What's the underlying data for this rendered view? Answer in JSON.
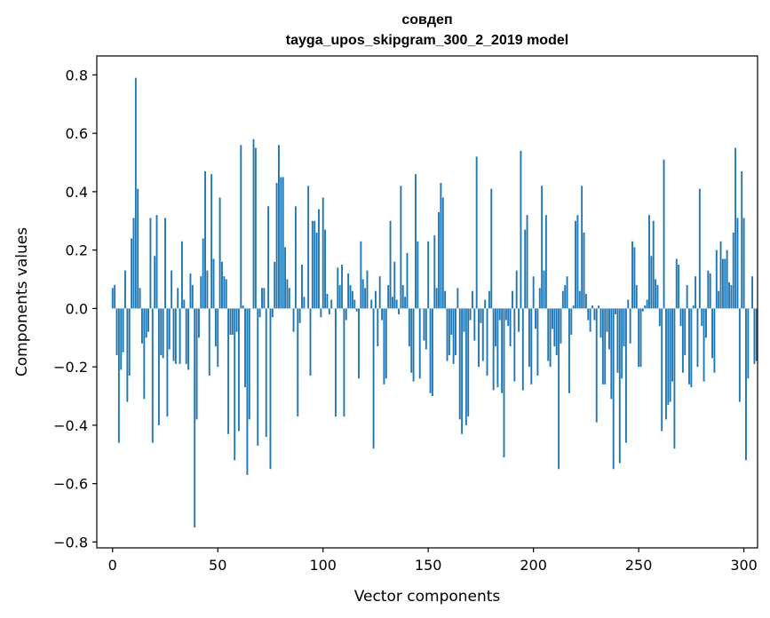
{
  "chart_data": {
    "type": "bar",
    "title_line1": "совдеп",
    "title_line2": "tayga_upos_skipgram_300_2_2019 model",
    "xlabel": "Vector components",
    "ylabel": "Components values",
    "xlim": [
      -7.5,
      306.5
    ],
    "ylim": [
      -0.82,
      0.865
    ],
    "xticks": [
      0,
      50,
      100,
      150,
      200,
      250,
      300
    ],
    "xtick_labels": [
      "0",
      "50",
      "100",
      "150",
      "200",
      "250",
      "300"
    ],
    "yticks": [
      -0.8,
      -0.6,
      -0.4,
      -0.2,
      0.0,
      0.2,
      0.4,
      0.6,
      0.8
    ],
    "ytick_labels": [
      "−0.8",
      "−0.6",
      "−0.4",
      "−0.2",
      "0.0",
      "0.2",
      "0.4",
      "0.6",
      "0.8"
    ],
    "bar_color": "#1f77b4",
    "values": [
      0.07,
      0.08,
      -0.16,
      -0.46,
      -0.21,
      -0.15,
      0.13,
      -0.32,
      -0.23,
      0.24,
      0.31,
      0.79,
      0.41,
      0.07,
      -0.12,
      -0.31,
      -0.1,
      -0.08,
      0.31,
      -0.46,
      0.18,
      0.32,
      -0.4,
      -0.16,
      -0.17,
      0.31,
      -0.37,
      -0.14,
      0.13,
      -0.18,
      -0.19,
      0.07,
      -0.19,
      0.23,
      0.03,
      -0.19,
      -0.21,
      0.12,
      0.08,
      -0.75,
      -0.38,
      -0.1,
      0.11,
      0.24,
      0.47,
      0.13,
      -0.23,
      0.46,
      0.17,
      -0.13,
      -0.2,
      0.38,
      0.16,
      0.11,
      0.1,
      -0.43,
      -0.09,
      -0.09,
      -0.52,
      -0.08,
      -0.42,
      0.56,
      0.01,
      -0.27,
      -0.57,
      -0.38,
      0.0,
      0.58,
      0.55,
      -0.47,
      -0.03,
      0.07,
      0.07,
      -0.44,
      0.35,
      -0.55,
      -0.03,
      0.16,
      0.43,
      0.56,
      0.45,
      0.45,
      0.21,
      0.1,
      0.07,
      0.0,
      -0.08,
      0.35,
      -0.37,
      -0.05,
      0.15,
      0.04,
      0.0,
      0.42,
      -0.23,
      0.3,
      0.3,
      0.26,
      0.34,
      -0.03,
      0.38,
      0.27,
      0.05,
      -0.02,
      0.03,
      0.0,
      -0.37,
      0.14,
      0.08,
      0.15,
      -0.37,
      -0.04,
      0.12,
      0.08,
      0.06,
      0.03,
      -0.01,
      -0.24,
      0.23,
      0.1,
      0.07,
      0.13,
      0.0,
      0.03,
      -0.48,
      0.06,
      -0.13,
      0.11,
      -0.04,
      -0.26,
      -0.24,
      0.08,
      0.3,
      0.04,
      0.16,
      0.03,
      -0.02,
      0.42,
      0.08,
      0.04,
      0.19,
      -0.13,
      -0.22,
      -0.25,
      0.46,
      0.23,
      -0.24,
      0.0,
      -0.11,
      -0.14,
      0.23,
      -0.29,
      -0.3,
      0.25,
      0.07,
      0.33,
      0.43,
      0.38,
      0.06,
      -0.18,
      -0.16,
      -0.09,
      -0.19,
      -0.16,
      0.07,
      -0.38,
      -0.43,
      -0.08,
      -0.4,
      -0.37,
      -0.04,
      0.06,
      -0.11,
      0.52,
      -0.2,
      -0.05,
      -0.18,
      0.03,
      -0.23,
      0.06,
      0.41,
      -0.28,
      -0.13,
      -0.27,
      -0.04,
      -0.29,
      -0.51,
      -0.04,
      -0.06,
      -0.13,
      0.06,
      -0.25,
      0.13,
      -0.08,
      0.54,
      -0.28,
      0.27,
      0.32,
      -0.2,
      -0.26,
      0.11,
      -0.07,
      -0.23,
      0.07,
      0.42,
      0.13,
      0.32,
      -0.18,
      -0.2,
      -0.07,
      -0.13,
      -0.16,
      -0.55,
      -0.12,
      0.06,
      0.08,
      0.11,
      -0.29,
      -0.09,
      0.01,
      0.3,
      0.32,
      0.06,
      0.42,
      0.26,
      0.05,
      -0.04,
      -0.08,
      0.01,
      -0.04,
      -0.39,
      0.01,
      -0.1,
      -0.26,
      -0.26,
      -0.08,
      -0.14,
      -0.31,
      -0.55,
      -0.02,
      -0.22,
      -0.53,
      -0.24,
      -0.13,
      -0.46,
      0.03,
      -0.12,
      0.23,
      0.21,
      0.08,
      -0.2,
      -0.2,
      -0.01,
      0.01,
      0.03,
      0.32,
      0.18,
      0.3,
      0.1,
      0.08,
      -0.06,
      -0.42,
      0.51,
      -0.38,
      -0.33,
      -0.32,
      -0.25,
      -0.48,
      0.17,
      0.15,
      -0.06,
      -0.22,
      -0.16,
      0.08,
      -0.26,
      -0.27,
      0.01,
      0.11,
      -0.2,
      0.41,
      -0.06,
      -0.25,
      -0.1,
      0.13,
      0.12,
      -0.17,
      -0.22,
      0.2,
      0.06,
      0.23,
      0.17,
      0.17,
      0.2,
      0.09,
      0.08,
      0.26,
      0.55,
      0.31,
      -0.32,
      0.47,
      0.31,
      -0.52,
      -0.24,
      0.0,
      0.11,
      -0.19,
      -0.18
    ]
  }
}
